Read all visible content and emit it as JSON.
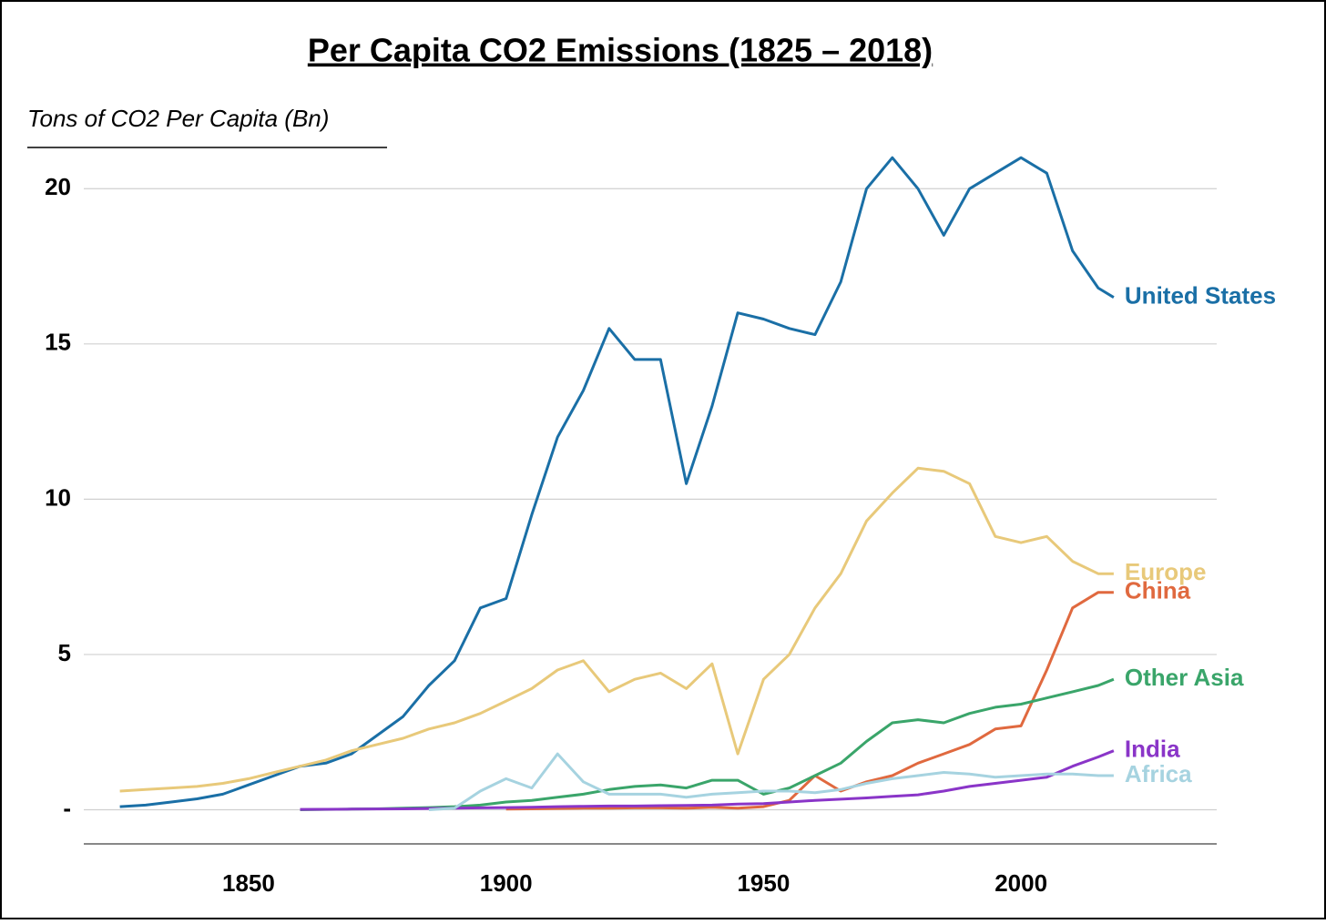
{
  "chart_data": {
    "type": "line",
    "title": "Per Capita CO2 Emissions (1825 – 2018)",
    "y_label": "Tons of CO2 Per Capita (Bn)",
    "x": [
      1825,
      1830,
      1835,
      1840,
      1845,
      1850,
      1855,
      1860,
      1865,
      1870,
      1875,
      1880,
      1885,
      1890,
      1895,
      1900,
      1905,
      1910,
      1915,
      1920,
      1925,
      1930,
      1935,
      1940,
      1945,
      1950,
      1955,
      1960,
      1965,
      1970,
      1975,
      1980,
      1985,
      1990,
      1995,
      2000,
      2005,
      2010,
      2015,
      2018
    ],
    "xlim": [
      1818,
      2038
    ],
    "xticks": [
      1850,
      1900,
      1950,
      2000
    ],
    "ylim": [
      -1.1,
      22.5
    ],
    "yticks": [
      {
        "value": 0,
        "label": "-"
      },
      5,
      10,
      15,
      20
    ],
    "grid": true,
    "series": [
      {
        "name": "United States",
        "color": "#1a6fa6",
        "values": [
          0.1,
          0.15,
          0.25,
          0.35,
          0.5,
          0.8,
          1.1,
          1.4,
          1.5,
          1.8,
          2.4,
          3.0,
          4.0,
          4.8,
          6.5,
          6.8,
          9.5,
          12.0,
          13.5,
          15.5,
          14.5,
          14.5,
          10.5,
          13.0,
          16.0,
          15.8,
          15.5,
          15.3,
          17.0,
          20.0,
          21.0,
          20.0,
          18.5,
          20.0,
          20.5,
          21.0,
          20.5,
          18.0,
          16.8,
          16.5
        ]
      },
      {
        "name": "Europe",
        "color": "#e8c97a",
        "values": [
          0.6,
          0.65,
          0.7,
          0.75,
          0.85,
          1.0,
          1.2,
          1.4,
          1.6,
          1.9,
          2.1,
          2.3,
          2.6,
          2.8,
          3.1,
          3.5,
          3.9,
          4.5,
          4.8,
          3.8,
          4.2,
          4.4,
          3.9,
          4.7,
          1.8,
          4.2,
          5.0,
          6.5,
          7.6,
          9.3,
          10.2,
          11.0,
          10.9,
          10.5,
          8.8,
          8.6,
          8.8,
          8.0,
          7.6,
          7.6
        ]
      },
      {
        "name": "China",
        "color": "#e0693f",
        "values": [
          null,
          null,
          null,
          null,
          null,
          null,
          null,
          null,
          null,
          null,
          null,
          null,
          null,
          null,
          null,
          0.02,
          0.03,
          0.04,
          0.05,
          0.05,
          0.06,
          0.06,
          0.05,
          0.08,
          0.05,
          0.1,
          0.3,
          1.1,
          0.6,
          0.9,
          1.1,
          1.5,
          1.8,
          2.1,
          2.6,
          2.7,
          4.5,
          6.5,
          7.0,
          7.0
        ]
      },
      {
        "name": "Other Asia",
        "color": "#3aa56a",
        "values": [
          null,
          null,
          null,
          null,
          null,
          null,
          null,
          0.0,
          0.01,
          0.02,
          0.03,
          0.05,
          0.07,
          0.1,
          0.15,
          0.25,
          0.3,
          0.4,
          0.5,
          0.65,
          0.75,
          0.8,
          0.7,
          0.95,
          0.95,
          0.5,
          0.7,
          1.1,
          1.5,
          2.2,
          2.8,
          2.9,
          2.8,
          3.1,
          3.3,
          3.4,
          3.6,
          3.8,
          4.0,
          4.2
        ]
      },
      {
        "name": "India",
        "color": "#8a35c8",
        "values": [
          null,
          null,
          null,
          null,
          null,
          null,
          null,
          0.01,
          0.015,
          0.02,
          0.025,
          0.03,
          0.04,
          0.05,
          0.06,
          0.07,
          0.08,
          0.1,
          0.11,
          0.12,
          0.12,
          0.13,
          0.14,
          0.15,
          0.18,
          0.2,
          0.25,
          0.3,
          0.34,
          0.38,
          0.43,
          0.48,
          0.6,
          0.75,
          0.85,
          0.95,
          1.05,
          1.4,
          1.7,
          1.9
        ]
      },
      {
        "name": "Africa",
        "color": "#a6d3e0",
        "values": [
          null,
          null,
          null,
          null,
          null,
          null,
          null,
          null,
          null,
          null,
          null,
          null,
          0.0,
          0.05,
          0.6,
          1.0,
          0.7,
          1.8,
          0.9,
          0.5,
          0.5,
          0.5,
          0.4,
          0.5,
          0.55,
          0.6,
          0.6,
          0.55,
          0.65,
          0.85,
          1.0,
          1.1,
          1.2,
          1.15,
          1.05,
          1.1,
          1.15,
          1.15,
          1.1,
          1.1
        ]
      }
    ]
  }
}
